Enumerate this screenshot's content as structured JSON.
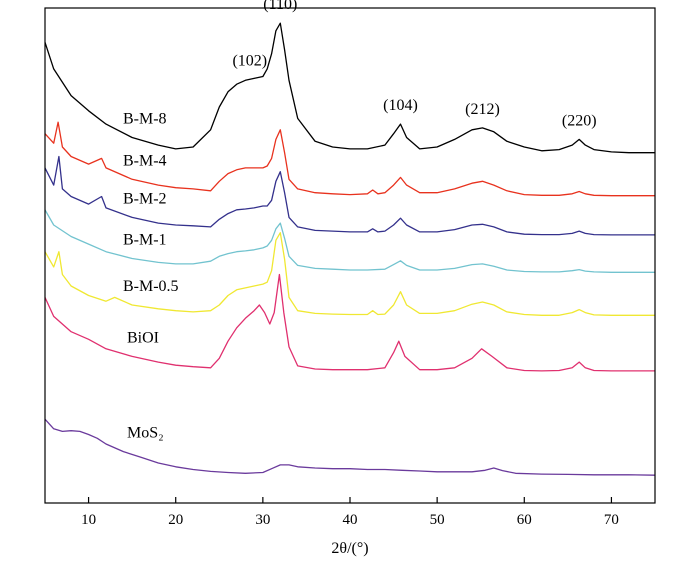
{
  "chart_data": {
    "type": "line",
    "xlabel": "2θ/(°)",
    "xlim": [
      5,
      75
    ],
    "xticks": [
      10,
      20,
      30,
      40,
      50,
      60,
      70
    ],
    "y_ticks_shown": false,
    "grid": false,
    "peak_annotations": [
      {
        "label": "(102)",
        "x": 28.5
      },
      {
        "label": "(110)",
        "x": 32.0
      },
      {
        "label": "(104)",
        "x": 45.8
      },
      {
        "label": "(212)",
        "x": 55.2
      },
      {
        "label": "(220)",
        "x": 66.3
      }
    ],
    "series": [
      {
        "name": "B-M-8",
        "color": "#000000",
        "x": [
          5,
          6,
          8,
          10,
          12,
          15,
          18,
          20,
          22,
          24,
          25,
          26,
          27,
          28,
          29,
          30,
          30.5,
          31,
          31.5,
          32,
          32.5,
          33,
          34,
          36,
          38,
          40,
          42,
          44,
          45,
          45.8,
          46.5,
          48,
          50,
          52,
          54,
          55.2,
          56.5,
          58,
          60,
          62,
          64,
          65.5,
          66.3,
          67,
          68,
          70,
          72,
          75
        ],
        "y": [
          8.6,
          7.9,
          7.2,
          6.8,
          6.45,
          6.1,
          5.9,
          5.8,
          5.85,
          6.3,
          6.9,
          7.3,
          7.5,
          7.6,
          7.65,
          7.7,
          7.9,
          8.3,
          8.9,
          9.1,
          8.4,
          7.6,
          6.6,
          6.0,
          5.85,
          5.8,
          5.8,
          5.9,
          6.2,
          6.45,
          6.1,
          5.8,
          5.85,
          6.05,
          6.3,
          6.35,
          6.25,
          6.0,
          5.85,
          5.75,
          5.78,
          5.9,
          6.05,
          5.9,
          5.78,
          5.72,
          5.7,
          5.7
        ]
      },
      {
        "name": "B-M-4",
        "color": "#e8321e",
        "x": [
          5,
          6,
          6.5,
          7,
          8,
          10,
          11.5,
          12,
          15,
          18,
          20,
          22,
          24,
          25,
          26,
          27,
          28,
          29,
          30,
          30.5,
          31,
          31.5,
          32,
          32.5,
          33,
          34,
          36,
          38,
          40,
          42,
          42.6,
          43.2,
          44,
          45,
          45.8,
          46.5,
          48,
          50,
          52,
          54,
          55.2,
          56.5,
          58,
          60,
          62,
          64,
          65.5,
          66.3,
          67,
          68,
          70,
          72,
          75
        ],
        "y": [
          6.2,
          5.95,
          6.5,
          5.85,
          5.6,
          5.4,
          5.55,
          5.3,
          5.0,
          4.85,
          4.78,
          4.75,
          4.7,
          4.95,
          5.15,
          5.25,
          5.3,
          5.3,
          5.3,
          5.35,
          5.55,
          6.05,
          6.3,
          5.7,
          5.0,
          4.75,
          4.65,
          4.62,
          4.6,
          4.62,
          4.72,
          4.62,
          4.65,
          4.85,
          5.05,
          4.85,
          4.65,
          4.65,
          4.75,
          4.9,
          4.95,
          4.85,
          4.7,
          4.6,
          4.58,
          4.58,
          4.62,
          4.68,
          4.62,
          4.58,
          4.57,
          4.57,
          4.57
        ]
      },
      {
        "name": "B-M-2",
        "color": "#34318c",
        "x": [
          5,
          6,
          6.6,
          7,
          8,
          10,
          11.5,
          12,
          15,
          18,
          20,
          22,
          24,
          25,
          26,
          27,
          28,
          29,
          30,
          30.5,
          31,
          31.5,
          32,
          32.5,
          33,
          34,
          36,
          38,
          40,
          42,
          42.6,
          43.2,
          44,
          45,
          45.8,
          46.5,
          48,
          50,
          52,
          54,
          55.2,
          56.5,
          58,
          60,
          62,
          64,
          65.5,
          66.3,
          67,
          68,
          70,
          72,
          75
        ],
        "y": [
          5.3,
          4.85,
          5.6,
          4.75,
          4.55,
          4.35,
          4.55,
          4.25,
          4.0,
          3.85,
          3.8,
          3.78,
          3.75,
          3.95,
          4.1,
          4.2,
          4.22,
          4.25,
          4.3,
          4.3,
          4.45,
          4.95,
          5.2,
          4.65,
          4.0,
          3.75,
          3.66,
          3.64,
          3.62,
          3.62,
          3.7,
          3.62,
          3.64,
          3.8,
          3.98,
          3.8,
          3.62,
          3.62,
          3.68,
          3.8,
          3.82,
          3.75,
          3.62,
          3.56,
          3.55,
          3.55,
          3.58,
          3.64,
          3.58,
          3.55,
          3.54,
          3.54,
          3.54
        ]
      },
      {
        "name": "B-M-1",
        "color": "#72c3cf",
        "x": [
          5,
          6,
          8,
          10,
          12,
          15,
          18,
          20,
          22,
          24,
          25,
          26,
          27,
          28,
          29,
          30,
          30.5,
          31,
          31.5,
          32,
          32.5,
          33,
          34,
          36,
          38,
          40,
          42,
          44,
          45,
          45.8,
          46.5,
          48,
          50,
          52,
          54,
          55.2,
          56.5,
          58,
          60,
          62,
          64,
          65.5,
          66.3,
          67,
          68,
          70,
          72,
          75
        ],
        "y": [
          4.2,
          3.8,
          3.5,
          3.3,
          3.1,
          2.92,
          2.82,
          2.78,
          2.78,
          2.85,
          2.98,
          3.05,
          3.1,
          3.12,
          3.15,
          3.2,
          3.25,
          3.4,
          3.7,
          3.85,
          3.45,
          2.98,
          2.74,
          2.66,
          2.64,
          2.62,
          2.62,
          2.64,
          2.76,
          2.86,
          2.74,
          2.62,
          2.62,
          2.66,
          2.76,
          2.78,
          2.72,
          2.62,
          2.58,
          2.57,
          2.57,
          2.6,
          2.63,
          2.59,
          2.57,
          2.56,
          2.56,
          2.56
        ]
      },
      {
        "name": "B-M-0.5",
        "color": "#f0e832",
        "x": [
          5,
          6,
          6.6,
          7,
          8,
          10,
          12,
          13,
          15,
          18,
          20,
          22,
          24,
          25,
          26,
          27,
          28,
          29,
          30,
          30.5,
          31,
          31.5,
          32,
          32.5,
          33,
          34,
          36,
          38,
          40,
          42,
          42.6,
          43.2,
          44,
          45,
          45.8,
          46.5,
          48,
          50,
          52,
          54,
          55.2,
          56.5,
          58,
          60,
          62,
          64,
          65.5,
          66.3,
          67,
          68,
          70,
          72,
          75
        ],
        "y": [
          3.1,
          2.7,
          3.1,
          2.5,
          2.2,
          1.95,
          1.8,
          1.9,
          1.7,
          1.6,
          1.55,
          1.52,
          1.55,
          1.7,
          1.95,
          2.1,
          2.15,
          2.2,
          2.25,
          2.3,
          2.6,
          3.4,
          3.6,
          2.9,
          1.9,
          1.55,
          1.48,
          1.46,
          1.45,
          1.45,
          1.55,
          1.45,
          1.46,
          1.7,
          2.05,
          1.7,
          1.48,
          1.48,
          1.55,
          1.72,
          1.78,
          1.7,
          1.52,
          1.45,
          1.43,
          1.43,
          1.5,
          1.58,
          1.5,
          1.44,
          1.43,
          1.43,
          1.43
        ]
      },
      {
        "name": "BiOI",
        "color": "#e0306f",
        "x": [
          5,
          6,
          8,
          10,
          12,
          15,
          18,
          20,
          22,
          24,
          25,
          26,
          27,
          28,
          29,
          29.6,
          30.2,
          30.8,
          31.3,
          31.9,
          32.4,
          33,
          34,
          36,
          38,
          40,
          42,
          44,
          45,
          45.6,
          46.3,
          48,
          50,
          52,
          54,
          55.1,
          56.3,
          58,
          60,
          62,
          64,
          65.5,
          66.3,
          67,
          68,
          70,
          72,
          75
        ],
        "y": [
          1.9,
          1.4,
          1.0,
          0.8,
          0.55,
          0.35,
          0.2,
          0.12,
          0.08,
          0.05,
          0.3,
          0.75,
          1.1,
          1.35,
          1.55,
          1.7,
          1.5,
          1.2,
          1.5,
          2.5,
          1.5,
          0.6,
          0.1,
          0.02,
          0.0,
          0.0,
          0.0,
          0.05,
          0.45,
          0.75,
          0.35,
          0.0,
          0.0,
          0.05,
          0.3,
          0.55,
          0.35,
          0.05,
          -0.02,
          -0.03,
          -0.02,
          0.05,
          0.2,
          0.05,
          -0.02,
          -0.03,
          -0.03,
          -0.03
        ]
      },
      {
        "name": "MoS₂",
        "color": "#6a3a9c",
        "x": [
          5,
          6,
          7,
          8,
          9,
          10,
          11,
          12,
          14,
          16,
          18,
          20,
          22,
          24,
          26,
          28,
          30,
          31,
          32,
          33,
          34,
          36,
          38,
          40,
          42,
          44,
          46,
          48,
          50,
          52,
          54,
          55.5,
          56.5,
          57.5,
          59,
          62,
          65,
          68,
          72,
          75
        ],
        "y": [
          -1.3,
          -1.55,
          -1.62,
          -1.6,
          -1.62,
          -1.7,
          -1.8,
          -1.95,
          -2.15,
          -2.3,
          -2.45,
          -2.55,
          -2.62,
          -2.67,
          -2.7,
          -2.72,
          -2.7,
          -2.6,
          -2.5,
          -2.5,
          -2.55,
          -2.58,
          -2.6,
          -2.6,
          -2.62,
          -2.62,
          -2.64,
          -2.66,
          -2.68,
          -2.68,
          -2.68,
          -2.64,
          -2.58,
          -2.65,
          -2.72,
          -2.74,
          -2.75,
          -2.76,
          -2.76,
          -2.77
        ]
      }
    ]
  }
}
